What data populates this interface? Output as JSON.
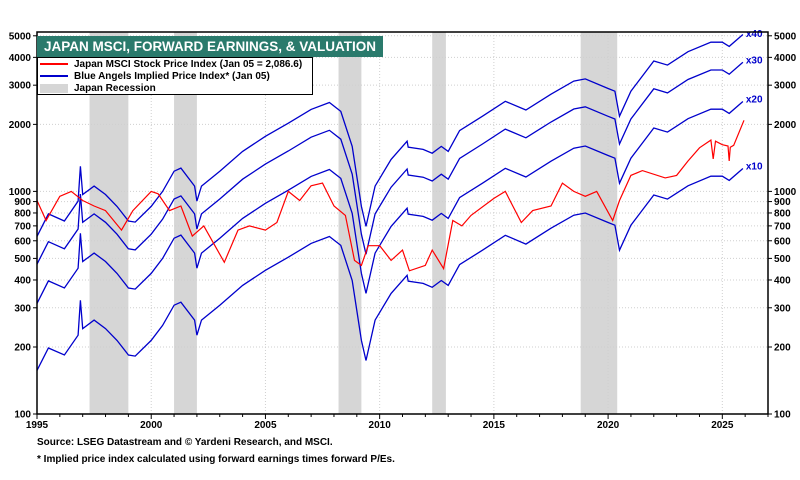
{
  "chart_data": {
    "type": "line",
    "title": "JAPAN MSCI, FORWARD EARNINGS, & VALUATION",
    "y_scale": "log",
    "ylim": [
      100,
      5200
    ],
    "xlim": [
      1995,
      2027
    ],
    "grid": true,
    "legend_placement": "top-left",
    "x_ticks": [
      "1995",
      "2000",
      "2005",
      "2010",
      "2015",
      "2020",
      "2025"
    ],
    "y_ticks": [
      100,
      200,
      300,
      400,
      500,
      600,
      700,
      800,
      900,
      1000,
      2000,
      3000,
      4000,
      5000
    ],
    "y_tick_labels": [
      "100",
      "200",
      "300",
      "400",
      "500",
      "600",
      "700",
      "800",
      "900",
      "1000",
      "2000",
      "3000",
      "4000",
      "5000"
    ],
    "legend": [
      {
        "label": "Japan MSCI Stock Price Index (Jan 05 = 2,086.6)",
        "color": "#ff0000",
        "kind": "line"
      },
      {
        "label": "Blue Angels Implied Price Index* (Jan 05)",
        "color": "#0000cc",
        "kind": "line"
      },
      {
        "label": "Japan Recession",
        "color": "#d6d6d6",
        "kind": "band"
      }
    ],
    "recessions": [
      [
        1997.3,
        1999.0
      ],
      [
        2001.0,
        2002.0
      ],
      [
        2008.2,
        2009.2
      ],
      [
        2012.3,
        2012.9
      ],
      [
        2018.8,
        2020.4
      ]
    ],
    "stock_index": {
      "name": "Japan MSCI Stock Price Index",
      "color": "#ff0000",
      "x": [
        1995.0,
        1995.4,
        1996.0,
        1996.5,
        1997.0,
        1997.5,
        1998.0,
        1998.7,
        1999.2,
        2000.0,
        2000.3,
        2000.8,
        2001.3,
        2001.8,
        2002.3,
        2003.2,
        2003.8,
        2004.3,
        2005.0,
        2005.5,
        2006.0,
        2006.5,
        2007.0,
        2007.5,
        2008.0,
        2008.5,
        2008.9,
        2009.2,
        2009.5,
        2010.0,
        2010.5,
        2011.0,
        2011.3,
        2012.0,
        2012.3,
        2012.8,
        2013.2,
        2013.6,
        2014.0,
        2015.0,
        2015.5,
        2016.2,
        2016.7,
        2017.5,
        2018.0,
        2018.5,
        2019.0,
        2019.5,
        2020.2,
        2020.5,
        2021.0,
        2021.5,
        2022.5,
        2023.0,
        2023.5,
        2024.0,
        2024.5,
        2024.6,
        2024.7,
        2025.0,
        2025.25,
        2025.3,
        2025.35,
        2025.5,
        2025.95
      ],
      "y": [
        910,
        740,
        950,
        1000,
        910,
        860,
        820,
        670,
        820,
        1000,
        975,
        820,
        860,
        630,
        700,
        480,
        670,
        700,
        670,
        725,
        1000,
        910,
        1060,
        1090,
        860,
        780,
        490,
        465,
        570,
        570,
        490,
        545,
        440,
        465,
        545,
        450,
        740,
        700,
        780,
        930,
        1000,
        725,
        820,
        860,
        1090,
        1000,
        950,
        1000,
        740,
        910,
        1180,
        1240,
        1150,
        1180,
        1370,
        1570,
        1700,
        1400,
        1680,
        1620,
        1600,
        1370,
        1580,
        1610,
        2087
      ]
    },
    "implied_index": {
      "name": "Blue Angels Implied Price Index",
      "color": "#0000cc",
      "multiples": [
        {
          "label": "x10",
          "factor": 1
        },
        {
          "label": "x20",
          "factor": 2
        },
        {
          "label": "x30",
          "factor": 3
        },
        {
          "label": "x40",
          "factor": 4
        }
      ],
      "x": [
        1995.0,
        1995.5,
        1996.2,
        1996.8,
        1996.9,
        1997.0,
        1997.5,
        1998.0,
        1998.5,
        1999.0,
        1999.3,
        2000.0,
        2000.5,
        2001.0,
        2001.3,
        2001.9,
        2002.0,
        2002.2,
        2003.0,
        2004.0,
        2005.0,
        2006.0,
        2007.0,
        2007.8,
        2008.3,
        2008.8,
        2009.2,
        2009.4,
        2009.8,
        2010.5,
        2011.2,
        2011.25,
        2011.9,
        2012.3,
        2012.7,
        2013.0,
        2013.5,
        2014.5,
        2015.5,
        2016.4,
        2017.5,
        2018.5,
        2019.0,
        2020.0,
        2020.3,
        2020.5,
        2021.0,
        2022.0,
        2022.6,
        2023.5,
        2024.5,
        2025.0,
        2025.3,
        2025.9
      ],
      "x10_values": [
        157,
        198,
        184,
        226,
        324,
        242,
        264,
        242,
        214,
        184,
        182,
        214,
        250,
        308,
        318,
        264,
        226,
        264,
        308,
        378,
        442,
        506,
        584,
        627,
        572,
        398,
        214,
        174,
        264,
        348,
        420,
        395,
        386,
        371,
        398,
        378,
        469,
        544,
        635,
        580,
        683,
        782,
        800,
        725,
        705,
        544,
        705,
        963,
        923,
        1060,
        1170,
        1170,
        1120,
        1267
      ]
    }
  },
  "footer": {
    "source": "Source: LSEG Datastream and © Yardeni Research, and MSCI.",
    "note": "* Implied price index calculated using forward earnings times forward P/Es."
  }
}
